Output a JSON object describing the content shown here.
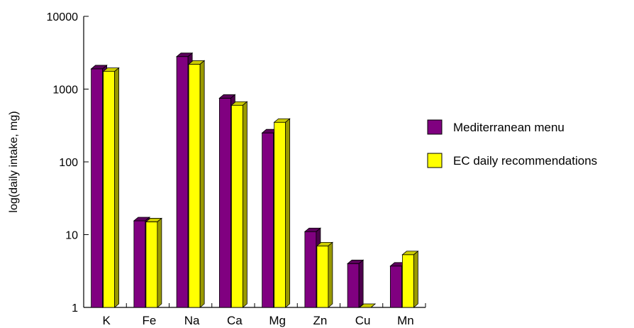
{
  "chart_data": {
    "type": "bar",
    "categories": [
      "K",
      "Fe",
      "Na",
      "Ca",
      "Mg",
      "Zn",
      "Cu",
      "Mn"
    ],
    "series": [
      {
        "name": "Mediterranean menu",
        "values": [
          1900,
          15.5,
          2800,
          750,
          250,
          11,
          4,
          3.7
        ]
      },
      {
        "name": "EC daily recommendations",
        "values": [
          1750,
          15,
          2200,
          600,
          350,
          7,
          1,
          5.3
        ]
      }
    ],
    "ylabel": "log(daily intake, mg)",
    "yscale": "log",
    "ylim": [
      1,
      10000
    ],
    "yticks": [
      "1",
      "10",
      "100",
      "1000",
      "10000"
    ],
    "legend_position": "right",
    "grid": false,
    "colors": {
      "series1_front": "#800080",
      "series1_top": "#5c005c",
      "series1_side": "#4d004d",
      "series2_front": "#ffff00",
      "series2_top": "#cccc00",
      "series2_side": "#999900"
    }
  }
}
